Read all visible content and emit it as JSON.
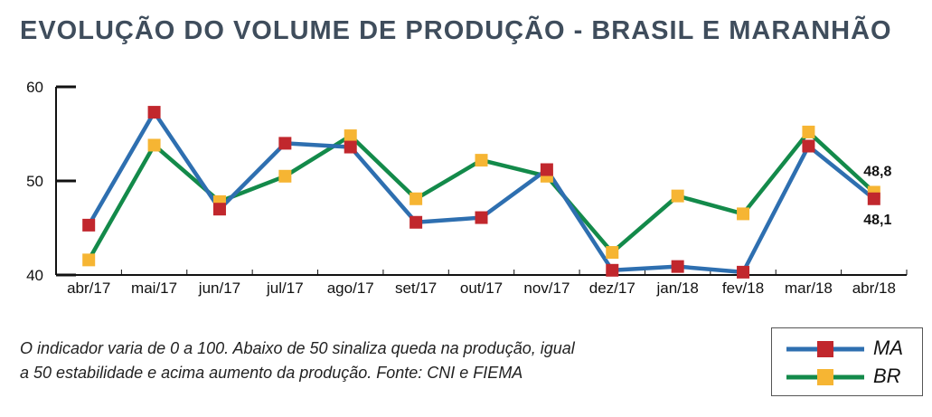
{
  "title": "EVOLUÇÃO DO VOLUME DE PRODUÇÃO - BRASIL E MARANHÃO",
  "note": {
    "line1": "O indicador varia de 0 a 100. Abaixo de 50 sinaliza queda na produção, igual",
    "line2": "a 50 estabilidade e acima aumento da produção. Fonte: CNI e FIEMA"
  },
  "colors": {
    "MA_line": "#2e6fb0",
    "MA_marker": "#c1272d",
    "BR_line": "#138a4a",
    "BR_marker": "#f6b533"
  },
  "chart_data": {
    "type": "line",
    "title": "EVOLUÇÃO DO VOLUME DE PRODUÇÃO - BRASIL E MARANHÃO",
    "xlabel": "",
    "ylabel": "",
    "ylim": [
      40,
      60
    ],
    "yticks": [
      40,
      50,
      60
    ],
    "grid": false,
    "legend_placement": "bottom-right",
    "categories": [
      "abr/17",
      "mai/17",
      "jun/17",
      "jul/17",
      "ago/17",
      "set/17",
      "out/17",
      "nov/17",
      "dez/17",
      "jan/18",
      "fev/18",
      "mar/18",
      "abr/18"
    ],
    "series": [
      {
        "name": "MA",
        "values": [
          45.3,
          57.3,
          47.0,
          54.0,
          53.6,
          45.6,
          46.1,
          51.2,
          40.5,
          40.9,
          40.3,
          53.7,
          48.1
        ]
      },
      {
        "name": "BR",
        "values": [
          41.6,
          53.8,
          47.8,
          50.5,
          54.8,
          48.1,
          52.2,
          50.5,
          42.4,
          48.4,
          46.5,
          55.2,
          48.8
        ]
      }
    ],
    "annotations": [
      {
        "series": "BR",
        "category": "abr/18",
        "text": "48,8"
      },
      {
        "series": "MA",
        "category": "abr/18",
        "text": "48,1"
      }
    ]
  }
}
